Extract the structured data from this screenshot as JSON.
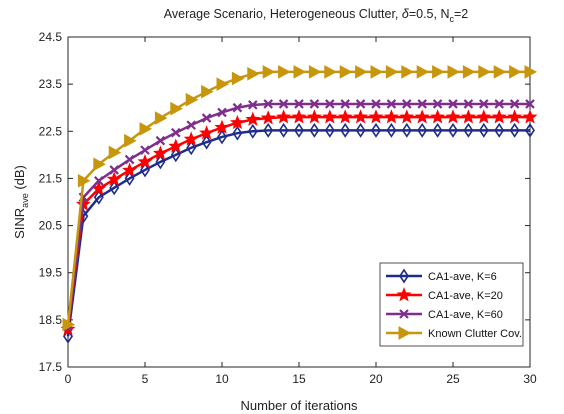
{
  "chart_data": {
    "type": "line",
    "title": {
      "main": "Average Scenario, Heterogeneous Clutter, ",
      "delta_sym": "δ",
      "delta_val": "=0.5, N",
      "nc_sub": "c",
      "nc_val": "=2"
    },
    "xlabel": "Number of iterations",
    "ylabel": {
      "main": "SINR",
      "sub": "ave",
      "unit": " (dB)"
    },
    "xlim": [
      0,
      30
    ],
    "ylim": [
      17.5,
      24.5
    ],
    "xticks": [
      0,
      5,
      10,
      15,
      20,
      25,
      30
    ],
    "yticks": [
      17.5,
      18.5,
      19.5,
      20.5,
      21.5,
      22.5,
      23.5,
      24.5
    ],
    "grid": false,
    "legend_position": "bottom-right",
    "x": [
      0,
      1,
      2,
      3,
      4,
      5,
      6,
      7,
      8,
      9,
      10,
      11,
      12,
      13,
      14,
      15,
      16,
      17,
      18,
      19,
      20,
      21,
      22,
      23,
      24,
      25,
      26,
      27,
      28,
      29,
      30
    ],
    "series": [
      {
        "name": "CA1-ave, K=6",
        "color": "#1f2d8a",
        "marker": "diamond",
        "values": [
          18.15,
          20.7,
          21.1,
          21.3,
          21.5,
          21.68,
          21.85,
          22.0,
          22.15,
          22.27,
          22.38,
          22.46,
          22.5,
          22.52,
          22.52,
          22.52,
          22.52,
          22.52,
          22.52,
          22.52,
          22.52,
          22.52,
          22.52,
          22.52,
          22.52,
          22.52,
          22.52,
          22.52,
          22.52,
          22.52,
          22.52
        ]
      },
      {
        "name": "CA1-ave, K=20",
        "color": "#ff0000",
        "marker": "star",
        "values": [
          18.3,
          20.95,
          21.28,
          21.48,
          21.67,
          21.85,
          22.03,
          22.18,
          22.33,
          22.46,
          22.58,
          22.68,
          22.75,
          22.78,
          22.8,
          22.8,
          22.8,
          22.8,
          22.8,
          22.8,
          22.8,
          22.8,
          22.8,
          22.8,
          22.8,
          22.8,
          22.8,
          22.8,
          22.8,
          22.8,
          22.8
        ]
      },
      {
        "name": "CA1-ave, K=60",
        "color": "#7e2f8e",
        "marker": "x",
        "values": [
          18.35,
          21.1,
          21.45,
          21.68,
          21.9,
          22.1,
          22.3,
          22.47,
          22.63,
          22.78,
          22.9,
          23.0,
          23.06,
          23.08,
          23.08,
          23.08,
          23.08,
          23.08,
          23.08,
          23.08,
          23.08,
          23.08,
          23.08,
          23.08,
          23.08,
          23.08,
          23.08,
          23.08,
          23.08,
          23.08,
          23.08
        ]
      },
      {
        "name": "Known Clutter Cov.",
        "color": "#c8960c",
        "marker": "triangle-right",
        "values": [
          18.4,
          21.45,
          21.8,
          22.05,
          22.3,
          22.55,
          22.78,
          22.98,
          23.17,
          23.34,
          23.5,
          23.62,
          23.72,
          23.76,
          23.76,
          23.76,
          23.76,
          23.76,
          23.76,
          23.76,
          23.76,
          23.76,
          23.76,
          23.76,
          23.76,
          23.76,
          23.76,
          23.76,
          23.76,
          23.76,
          23.76
        ]
      }
    ]
  }
}
